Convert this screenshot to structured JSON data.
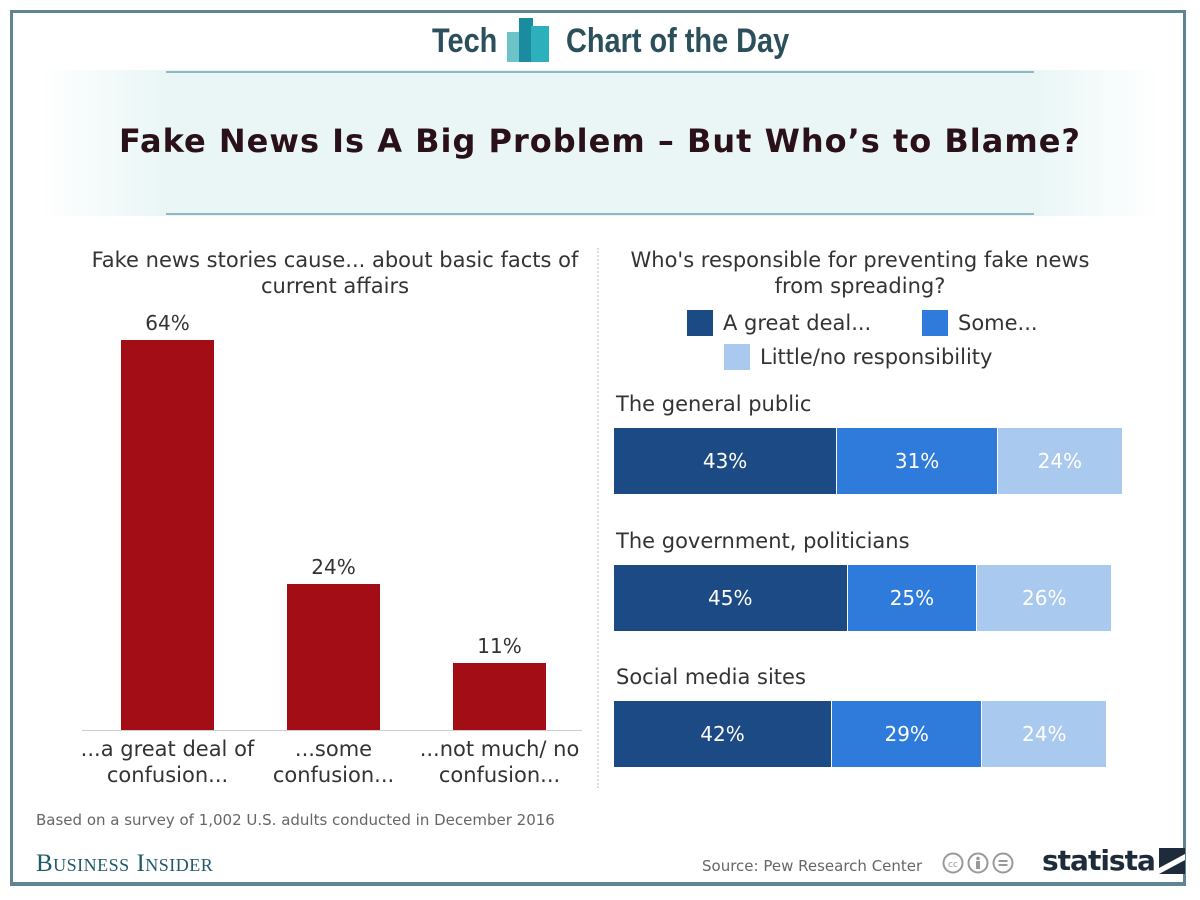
{
  "header": {
    "left": "Tech",
    "right": "Chart of the Day"
  },
  "title": "Fake News Is A Big Problem – But Who’s to Blame?",
  "chart_data": [
    {
      "type": "bar",
      "title": "Fake news stories cause... about basic facts of current affairs",
      "categories": [
        "...a great deal of confusion...",
        "...some confusion...",
        "...not much/ no confusion..."
      ],
      "values": [
        64,
        24,
        11
      ],
      "value_labels": [
        "64%",
        "24%",
        "11%"
      ],
      "unit": "%",
      "color": "#a30e16",
      "ylim": [
        0,
        64
      ],
      "grid": false
    },
    {
      "type": "bar",
      "stacked": true,
      "orientation": "horizontal",
      "title": "Who's responsible for preventing fake news from spreading?",
      "categories": [
        "The general public",
        "The government, politicians",
        "Social media sites"
      ],
      "series": [
        {
          "name": "A great deal...",
          "color": "#1c4a84",
          "values": [
            43,
            45,
            42
          ]
        },
        {
          "name": "Some...",
          "color": "#2f7bdb",
          "values": [
            31,
            25,
            29
          ]
        },
        {
          "name": "Little/no responsibility",
          "color": "#a9c9ef",
          "values": [
            24,
            26,
            24
          ]
        }
      ],
      "unit": "%",
      "legend": "top",
      "grid": false
    }
  ],
  "footnote": "Based on a survey of 1,002 U.S. adults conducted in December 2016",
  "brand": "Business Insider",
  "source": "Source: Pew Research Center",
  "logo": "statista",
  "icons": [
    "cc-icon",
    "by-icon",
    "nd-icon"
  ]
}
